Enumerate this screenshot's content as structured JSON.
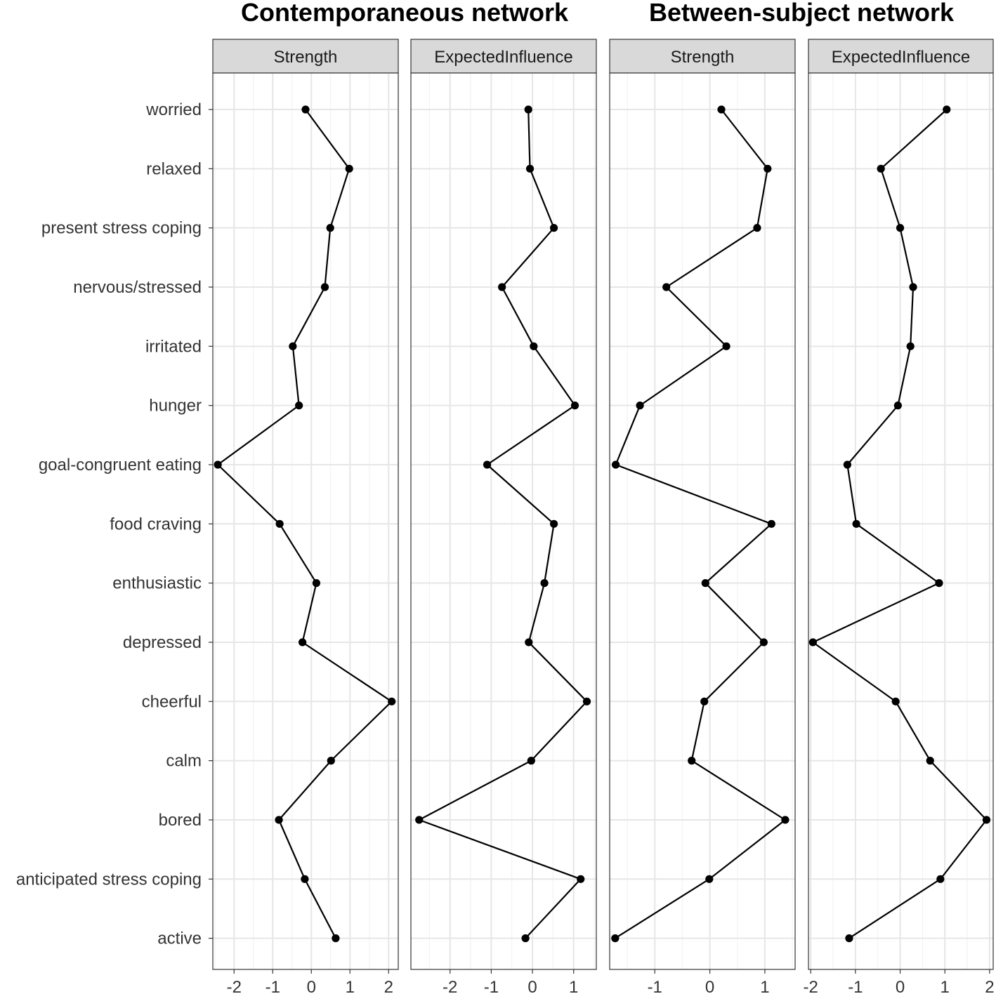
{
  "chart_data": {
    "type": "line",
    "groups": [
      {
        "title": "Contemporaneous network",
        "panels": [
          {
            "facet": "Strength",
            "xlim": [
              -2.55,
              2.25
            ],
            "xticks": [
              -2,
              -1,
              0,
              1,
              2
            ],
            "tick_labels": [
              "-2",
              "-1",
              "0",
              "1",
              "2"
            ],
            "values": [
              -0.15,
              0.98,
              0.49,
              0.35,
              -0.48,
              -0.32,
              -2.42,
              -0.82,
              0.13,
              -0.23,
              2.08,
              0.51,
              -0.84,
              -0.17,
              0.63
            ]
          },
          {
            "facet": "ExpectedInfluence",
            "xlim": [
              -2.95,
              1.55
            ],
            "xticks": [
              -2,
              -1,
              0,
              1
            ],
            "tick_labels": [
              "-2",
              "-1",
              "0",
              "1"
            ],
            "values": [
              -0.1,
              -0.06,
              0.52,
              -0.74,
              0.03,
              1.03,
              -1.1,
              0.52,
              0.29,
              -0.09,
              1.32,
              -0.03,
              -2.75,
              1.17,
              -0.17
            ]
          }
        ]
      },
      {
        "title": "Between-subject network",
        "panels": [
          {
            "facet": "Strength",
            "xlim": [
              -1.82,
              1.55
            ],
            "xticks": [
              -1,
              0,
              1
            ],
            "tick_labels": [
              "-1",
              "0",
              "1"
            ],
            "values": [
              0.21,
              1.05,
              0.86,
              -0.79,
              0.3,
              -1.27,
              -1.71,
              1.12,
              -0.08,
              0.98,
              -0.1,
              -0.33,
              1.37,
              -0.01,
              -1.72
            ]
          },
          {
            "facet": "ExpectedInfluence",
            "xlim": [
              -2.05,
              2.08
            ],
            "xticks": [
              -2,
              -1,
              0,
              1,
              2
            ],
            "tick_labels": [
              "-2",
              "-1",
              "0",
              "1",
              "2"
            ],
            "values": [
              1.04,
              -0.43,
              0.0,
              0.29,
              0.23,
              -0.05,
              -1.18,
              -0.98,
              0.87,
              -1.95,
              -0.1,
              0.67,
              1.93,
              0.9,
              -1.14
            ]
          }
        ]
      }
    ],
    "categories": [
      "worried",
      "relaxed",
      "present stress coping",
      "nervous/stressed",
      "irritated",
      "hunger",
      "goal-congruent eating",
      "food craving",
      "enthusiastic",
      "depressed",
      "cheerful",
      "calm",
      "bored",
      "anticipated stress coping",
      "active"
    ],
    "grid": true,
    "marker": "point",
    "line_color": "#000000"
  }
}
